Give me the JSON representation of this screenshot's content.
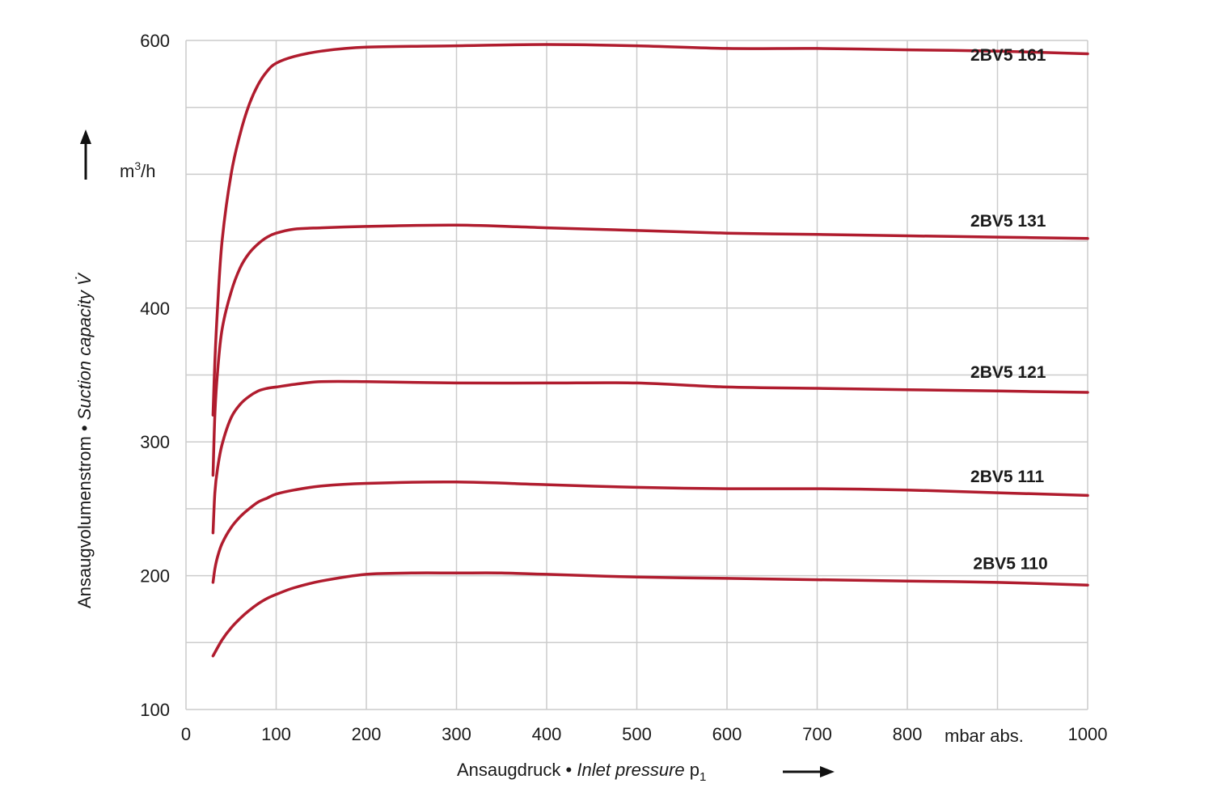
{
  "chart_data": {
    "type": "line",
    "title": "",
    "xlabel_main": "Ansaugdruck",
    "xlabel_sep": " • ",
    "xlabel_italic": "Inlet pressure",
    "xlabel_symbol": "p",
    "xlabel_subscript": "1",
    "xunit": "mbar abs.",
    "ylabel_main": "Ansaugvolumenstrom",
    "ylabel_sep": " • ",
    "ylabel_italic": "Suction capacity",
    "ylabel_symbol": "V̇",
    "yunit_base": "m",
    "yunit_sup": "3",
    "yunit_rest": "/h",
    "xlim": [
      0,
      1000
    ],
    "ylim": [
      100,
      600
    ],
    "xticks": [
      "0",
      "100",
      "200",
      "300",
      "400",
      "500",
      "600",
      "700",
      "800",
      "1000"
    ],
    "xtick_values": [
      0,
      100,
      200,
      300,
      400,
      500,
      600,
      700,
      800,
      1000
    ],
    "yticks": [
      "100",
      "200",
      "300",
      "400",
      "600"
    ],
    "ytick_values": [
      100,
      200,
      300,
      400,
      600
    ],
    "grid": true,
    "line_color": "#b01c2e",
    "grid_color": "#cccccc",
    "series": [
      {
        "name": "2BV5 161",
        "x": [
          30,
          32,
          35,
          40,
          50,
          60,
          70,
          80,
          90,
          100,
          120,
          150,
          200,
          300,
          400,
          500,
          600,
          700,
          800,
          900,
          1000
        ],
        "y": [
          320,
          360,
          400,
          450,
          500,
          530,
          552,
          567,
          577,
          583,
          588,
          592,
          595,
          596,
          597,
          596,
          594,
          594,
          593,
          592,
          590
        ]
      },
      {
        "name": "2BV5 131",
        "x": [
          30,
          32,
          35,
          40,
          50,
          60,
          70,
          80,
          90,
          100,
          120,
          150,
          200,
          300,
          400,
          500,
          600,
          700,
          800,
          900,
          1000
        ],
        "y": [
          275,
          320,
          352,
          384,
          412,
          430,
          441,
          448,
          453,
          456,
          459,
          460,
          461,
          462,
          460,
          458,
          456,
          455,
          454,
          453,
          452
        ]
      },
      {
        "name": "2BV5 121",
        "x": [
          30,
          32,
          35,
          40,
          50,
          60,
          70,
          80,
          90,
          100,
          120,
          150,
          200,
          300,
          400,
          500,
          600,
          700,
          800,
          900,
          1000
        ],
        "y": [
          232,
          262,
          280,
          298,
          318,
          328,
          334,
          338,
          340,
          341,
          343,
          345,
          345,
          344,
          344,
          344,
          341,
          340,
          339,
          338,
          337
        ]
      },
      {
        "name": "2BV5 111",
        "x": [
          30,
          32,
          35,
          40,
          50,
          60,
          70,
          80,
          90,
          100,
          120,
          150,
          200,
          300,
          400,
          500,
          600,
          700,
          800,
          900,
          1000
        ],
        "y": [
          195,
          205,
          214,
          224,
          236,
          244,
          250,
          255,
          258,
          261,
          264,
          267,
          269,
          270,
          268,
          266,
          265,
          265,
          264,
          262,
          260
        ]
      },
      {
        "name": "2BV5 110",
        "x": [
          30,
          40,
          50,
          60,
          70,
          80,
          90,
          100,
          120,
          150,
          200,
          250,
          300,
          350,
          400,
          500,
          600,
          700,
          800,
          900,
          1000
        ],
        "y": [
          140,
          152,
          161,
          168,
          174,
          179,
          183,
          186,
          191,
          196,
          201,
          202,
          202,
          202,
          201,
          199,
          198,
          197,
          196,
          195,
          193
        ]
      }
    ],
    "labels": [
      {
        "text": "2BV5 161",
        "x": 870,
        "y": 585
      },
      {
        "text": "2BV5 131",
        "x": 870,
        "y": 461
      },
      {
        "text": "2BV5 121",
        "x": 870,
        "y": 348
      },
      {
        "text": "2BV5 111",
        "x": 870,
        "y": 270
      },
      {
        "text": "2BV5 110",
        "x": 873,
        "y": 205
      }
    ]
  }
}
